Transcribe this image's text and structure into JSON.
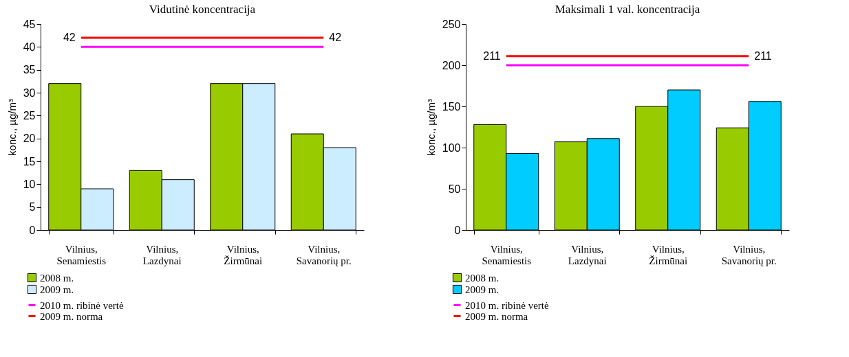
{
  "chart_data": [
    {
      "type": "bar",
      "title": "Vidutinė koncentracija",
      "ylabel": "konc., µg/m³",
      "categories": [
        "Vilnius,\nSenamiestis",
        "Vilnius,\nLazdynai",
        "Vilnius,\nŽirmūnai",
        "Vilnius,\nSavanorių pr."
      ],
      "series": [
        {
          "name": "2008 m.",
          "color": "#99cc00",
          "values": [
            32,
            13,
            32,
            21
          ]
        },
        {
          "name": "2009 m.",
          "color": "#ccecff",
          "values": [
            9,
            11,
            32,
            18
          ]
        }
      ],
      "ylim": [
        0,
        45
      ],
      "yticks": [
        0,
        5,
        10,
        15,
        20,
        25,
        30,
        35,
        40,
        45
      ],
      "ref_lines": [
        {
          "axis": "y",
          "value": 40,
          "label": "2010 m. ribinė vertė",
          "color": "#ff00ff"
        },
        {
          "axis": "y",
          "value": 42,
          "label": "2009 m. norma",
          "color": "#ff0000"
        }
      ],
      "annotations": [
        "42",
        "42"
      ],
      "legend": "bottom left",
      "grid": false
    },
    {
      "type": "bar",
      "title": "Maksimali 1 val. koncentracija",
      "ylabel": "konc., µg/m³",
      "categories": [
        "Vilnius,\nSenamiestis",
        "Vilnius,\nLazdynai",
        "Vilnius,\nŽirmūnai",
        "Vilnius,\nSavanorių pr."
      ],
      "series": [
        {
          "name": "2008 m.",
          "color": "#99cc00",
          "values": [
            128,
            107,
            150,
            124
          ]
        },
        {
          "name": "2009 m.",
          "color": "#00ccff",
          "values": [
            93,
            111,
            170,
            156
          ]
        }
      ],
      "ylim": [
        0,
        250
      ],
      "yticks": [
        0,
        50,
        100,
        150,
        200,
        250
      ],
      "ref_lines": [
        {
          "axis": "y",
          "value": 200,
          "label": "2010 m. ribinė vertė",
          "color": "#ff00ff"
        },
        {
          "axis": "y",
          "value": 211,
          "label": "2009 m. norma",
          "color": "#ff0000"
        }
      ],
      "annotations": [
        "211",
        "211"
      ],
      "legend": "bottom left",
      "grid": false
    }
  ]
}
